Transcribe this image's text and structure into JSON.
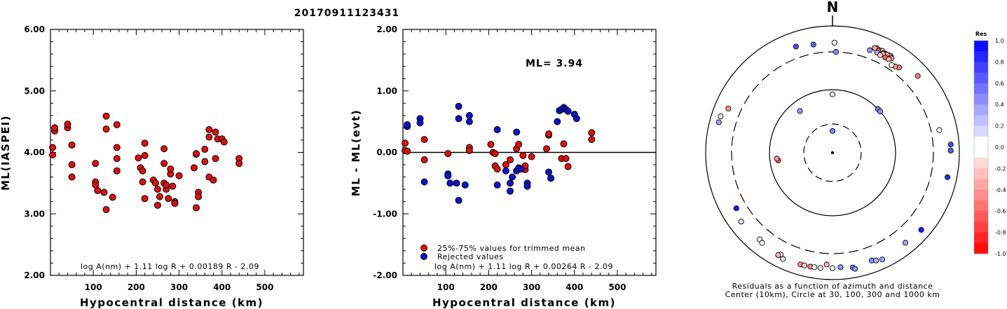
{
  "title": "20170911123431",
  "chart_data": [
    {
      "type": "scatter",
      "xlabel": "Hypocentral distance (km)",
      "ylabel": "ML(IASPEI)",
      "xlim": [
        0,
        590
      ],
      "ylim": [
        2.0,
        6.0
      ],
      "x_ticks": [
        "100",
        "200",
        "300",
        "400",
        "500"
      ],
      "y_ticks": [
        "2.00",
        "3.00",
        "4.00",
        "5.00",
        "6.00"
      ],
      "formula": "log A(nm) + 1.11 log R + 0.00189 R - 2.09",
      "series": [
        {
          "color": "#dd1111",
          "x": [
            5,
            5,
            10,
            10,
            40,
            40,
            50,
            50,
            50,
            105,
            105,
            105,
            110,
            125,
            130,
            130,
            130,
            145,
            155,
            155,
            155,
            155,
            205,
            210,
            215,
            215,
            220,
            220,
            220,
            240,
            245,
            250,
            250,
            255,
            265,
            265,
            265,
            270,
            270,
            275,
            280,
            280,
            285,
            290,
            290,
            300,
            335,
            340,
            340,
            340,
            345,
            345,
            360,
            360,
            370,
            370,
            370,
            380,
            385,
            385,
            390,
            400,
            405,
            440,
            440
          ],
          "y": [
            3.96,
            4.08,
            4.35,
            4.4,
            4.4,
            4.46,
            4.12,
            3.8,
            3.6,
            3.82,
            3.52,
            3.47,
            3.38,
            3.35,
            3.07,
            4.38,
            4.59,
            3.27,
            4.45,
            4.08,
            3.9,
            3.7,
            3.91,
            3.75,
            3.7,
            3.52,
            3.25,
            4.15,
            3.95,
            3.55,
            3.5,
            3.14,
            3.4,
            3.28,
            4.06,
            3.82,
            3.5,
            3.4,
            3.47,
            3.25,
            3.65,
            3.73,
            3.45,
            3.2,
            3.17,
            3.62,
            3.75,
            3.97,
            3.98,
            3.1,
            3.35,
            3.28,
            4.05,
            3.85,
            3.6,
            4.25,
            4.37,
            3.55,
            3.9,
            4.33,
            4.22,
            4.22,
            4.17,
            3.9,
            3.82
          ]
        }
      ]
    },
    {
      "type": "scatter",
      "xlabel": "Hypocentral distance (km)",
      "ylabel": "ML - ML(evt)",
      "xlim": [
        0,
        590
      ],
      "ylim": [
        -2.0,
        2.0
      ],
      "x_ticks": [
        "100",
        "200",
        "300",
        "400",
        "500"
      ],
      "y_ticks": [
        "-2.00",
        "-1.00",
        "0.00",
        "1.00",
        "2.00"
      ],
      "annotation": "ML= 3.94",
      "reference_line": 0.0,
      "formula": "log A(nm) + 1.11 log R + 0.00264 R - 2.09",
      "series": [
        {
          "name": "25%-75% values for trimmed mean",
          "color": "#dd1111",
          "x": [
            5,
            5,
            10,
            50,
            50,
            105,
            155,
            155,
            205,
            210,
            215,
            215,
            220,
            240,
            250,
            265,
            270,
            280,
            285,
            285,
            300,
            335,
            340,
            340,
            370,
            375,
            380,
            385,
            440,
            440
          ],
          "y": [
            0.15,
            0.03,
            0.02,
            0.21,
            -0.12,
            -0.02,
            0.08,
            0.03,
            0.13,
            0.0,
            -0.02,
            -0.22,
            -0.27,
            -0.2,
            -0.12,
            0.06,
            0.13,
            -0.05,
            -0.28,
            -0.22,
            -0.07,
            0.06,
            0.28,
            0.3,
            -0.1,
            0.14,
            -0.1,
            -0.23,
            0.32,
            0.21
          ]
        },
        {
          "name": "Rejected values",
          "color": "#1111cc",
          "x": [
            10,
            10,
            40,
            40,
            50,
            105,
            105,
            110,
            125,
            130,
            130,
            130,
            145,
            155,
            155,
            220,
            220,
            240,
            250,
            250,
            255,
            265,
            265,
            270,
            275,
            290,
            290,
            340,
            345,
            345,
            360,
            365,
            370,
            375,
            380,
            385,
            400,
            405
          ],
          "y": [
            0.42,
            0.45,
            0.55,
            0.48,
            -0.48,
            -0.35,
            -0.38,
            -0.5,
            -0.5,
            -0.78,
            0.75,
            0.55,
            -0.53,
            0.6,
            0.5,
            0.37,
            -0.53,
            -0.3,
            -0.63,
            -0.5,
            -0.4,
            0.33,
            -0.3,
            -0.25,
            -0.27,
            -0.5,
            -0.55,
            -0.32,
            -0.42,
            -0.42,
            0.5,
            0.68,
            0.7,
            0.73,
            0.7,
            0.67,
            0.62,
            0.55
          ]
        }
      ]
    },
    {
      "type": "scatter",
      "subtype": "polar",
      "north_label": "N",
      "caption_line1": "Residuals as a function of azimuth and distance",
      "caption_line2": "Center (10km), Circle at 30, 100, 300 and 1000 km",
      "colorbar_title": "Res",
      "colorbar_ticks": [
        "1.0",
        "0.8",
        "0.6",
        "0.4",
        "0.2",
        "0.0",
        "-0.2",
        "-0.4",
        "-0.6",
        "-0.8",
        "-1.0"
      ],
      "colorbar_range": [
        -1.0,
        1.0
      ],
      "rings_km": [
        10,
        30,
        100,
        300,
        1000
      ],
      "points": [
        {
          "az": 2,
          "dist": 300,
          "res": 0.45
        },
        {
          "az": 1,
          "dist": 460,
          "res": 0.05
        },
        {
          "az": 350,
          "dist": 455,
          "res": 0.6
        },
        {
          "az": 341,
          "dist": 510,
          "res": 0.7
        },
        {
          "az": 28,
          "dist": 505,
          "res": -0.35
        },
        {
          "az": 31,
          "dist": 525,
          "res": -0.4
        },
        {
          "az": 25,
          "dist": 520,
          "res": -0.3
        },
        {
          "az": 23,
          "dist": 540,
          "res": -0.45
        },
        {
          "az": 26,
          "dist": 535,
          "res": -0.25
        },
        {
          "az": 24,
          "dist": 500,
          "res": -0.55
        },
        {
          "az": 30,
          "dist": 515,
          "res": -0.2
        },
        {
          "az": 22,
          "dist": 525,
          "res": -0.35
        },
        {
          "az": 27,
          "dist": 495,
          "res": -0.5
        },
        {
          "az": 29,
          "dist": 510,
          "res": -0.4
        },
        {
          "az": 27,
          "dist": 480,
          "res": -0.3
        },
        {
          "az": 32,
          "dist": 490,
          "res": -0.45
        },
        {
          "az": 20,
          "dist": 440,
          "res": 0.4
        },
        {
          "az": 24,
          "dist": 450,
          "res": 0.3
        },
        {
          "az": 26,
          "dist": 430,
          "res": -0.2
        },
        {
          "az": 29,
          "dist": 435,
          "res": -0.6
        },
        {
          "az": 31,
          "dist": 440,
          "res": -0.3
        },
        {
          "az": 38,
          "dist": 420,
          "res": -0.5
        },
        {
          "az": 36,
          "dist": 390,
          "res": -0.4
        },
        {
          "az": 34,
          "dist": 375,
          "res": 0.05
        },
        {
          "az": 48,
          "dist": 570,
          "res": -0.5
        },
        {
          "az": 46,
          "dist": 100,
          "res": 0.5
        },
        {
          "az": 49,
          "dist": 100,
          "res": 0.45
        },
        {
          "az": 78,
          "dist": 440,
          "res": 0.0
        },
        {
          "az": 86,
          "dist": 680,
          "res": 0.7
        },
        {
          "az": 89,
          "dist": 670,
          "res": 0.65
        },
        {
          "az": 102,
          "dist": 650,
          "res": 0.85
        },
        {
          "az": 322,
          "dist": 70,
          "res": 0.4
        },
        {
          "az": 293,
          "dist": 530,
          "res": -0.4
        },
        {
          "az": 288,
          "dist": 650,
          "res": 0.1
        },
        {
          "az": 285,
          "dist": 655,
          "res": 0.35
        },
        {
          "az": 262,
          "dist": 75,
          "res": -0.6
        },
        {
          "az": 264,
          "dist": 78,
          "res": -0.4
        },
        {
          "az": 0,
          "dist": 22,
          "res": 0.5
        },
        {
          "az": 240,
          "dist": 480,
          "res": 0.9
        },
        {
          "az": 233,
          "dist": 560,
          "res": 0.1
        },
        {
          "az": 220,
          "dist": 530,
          "res": 0.05
        },
        {
          "az": 218,
          "dist": 560,
          "res": 0.0
        },
        {
          "az": 207,
          "dist": 560,
          "res": 0.05
        },
        {
          "az": 208,
          "dist": 600,
          "res": -0.3
        },
        {
          "az": 205,
          "dist": 640,
          "res": 0.1
        },
        {
          "az": 196,
          "dist": 610,
          "res": -0.4
        },
        {
          "az": 194,
          "dist": 610,
          "res": -0.2
        },
        {
          "az": 191,
          "dist": 605,
          "res": -0.5
        },
        {
          "az": 189,
          "dist": 600,
          "res": 0.0
        },
        {
          "az": 186,
          "dist": 600,
          "res": -0.1
        },
        {
          "az": 183,
          "dist": 500,
          "res": -0.3
        },
        {
          "az": 180,
          "dist": 590,
          "res": 0.0
        },
        {
          "az": 176,
          "dist": 570,
          "res": 0.4
        },
        {
          "az": 170,
          "dist": 620,
          "res": 0.5
        },
        {
          "az": 169,
          "dist": 670,
          "res": 0.4
        },
        {
          "az": 160,
          "dist": 570,
          "res": 0.45
        },
        {
          "az": 158,
          "dist": 610,
          "res": 0.3
        },
        {
          "az": 155,
          "dist": 655,
          "res": 0.35
        },
        {
          "az": 141,
          "dist": 600,
          "res": 0.35
        },
        {
          "az": 131,
          "dist": 650,
          "res": 0.9
        },
        {
          "az": 0,
          "dist": 85,
          "res": 0.1
        }
      ]
    }
  ]
}
